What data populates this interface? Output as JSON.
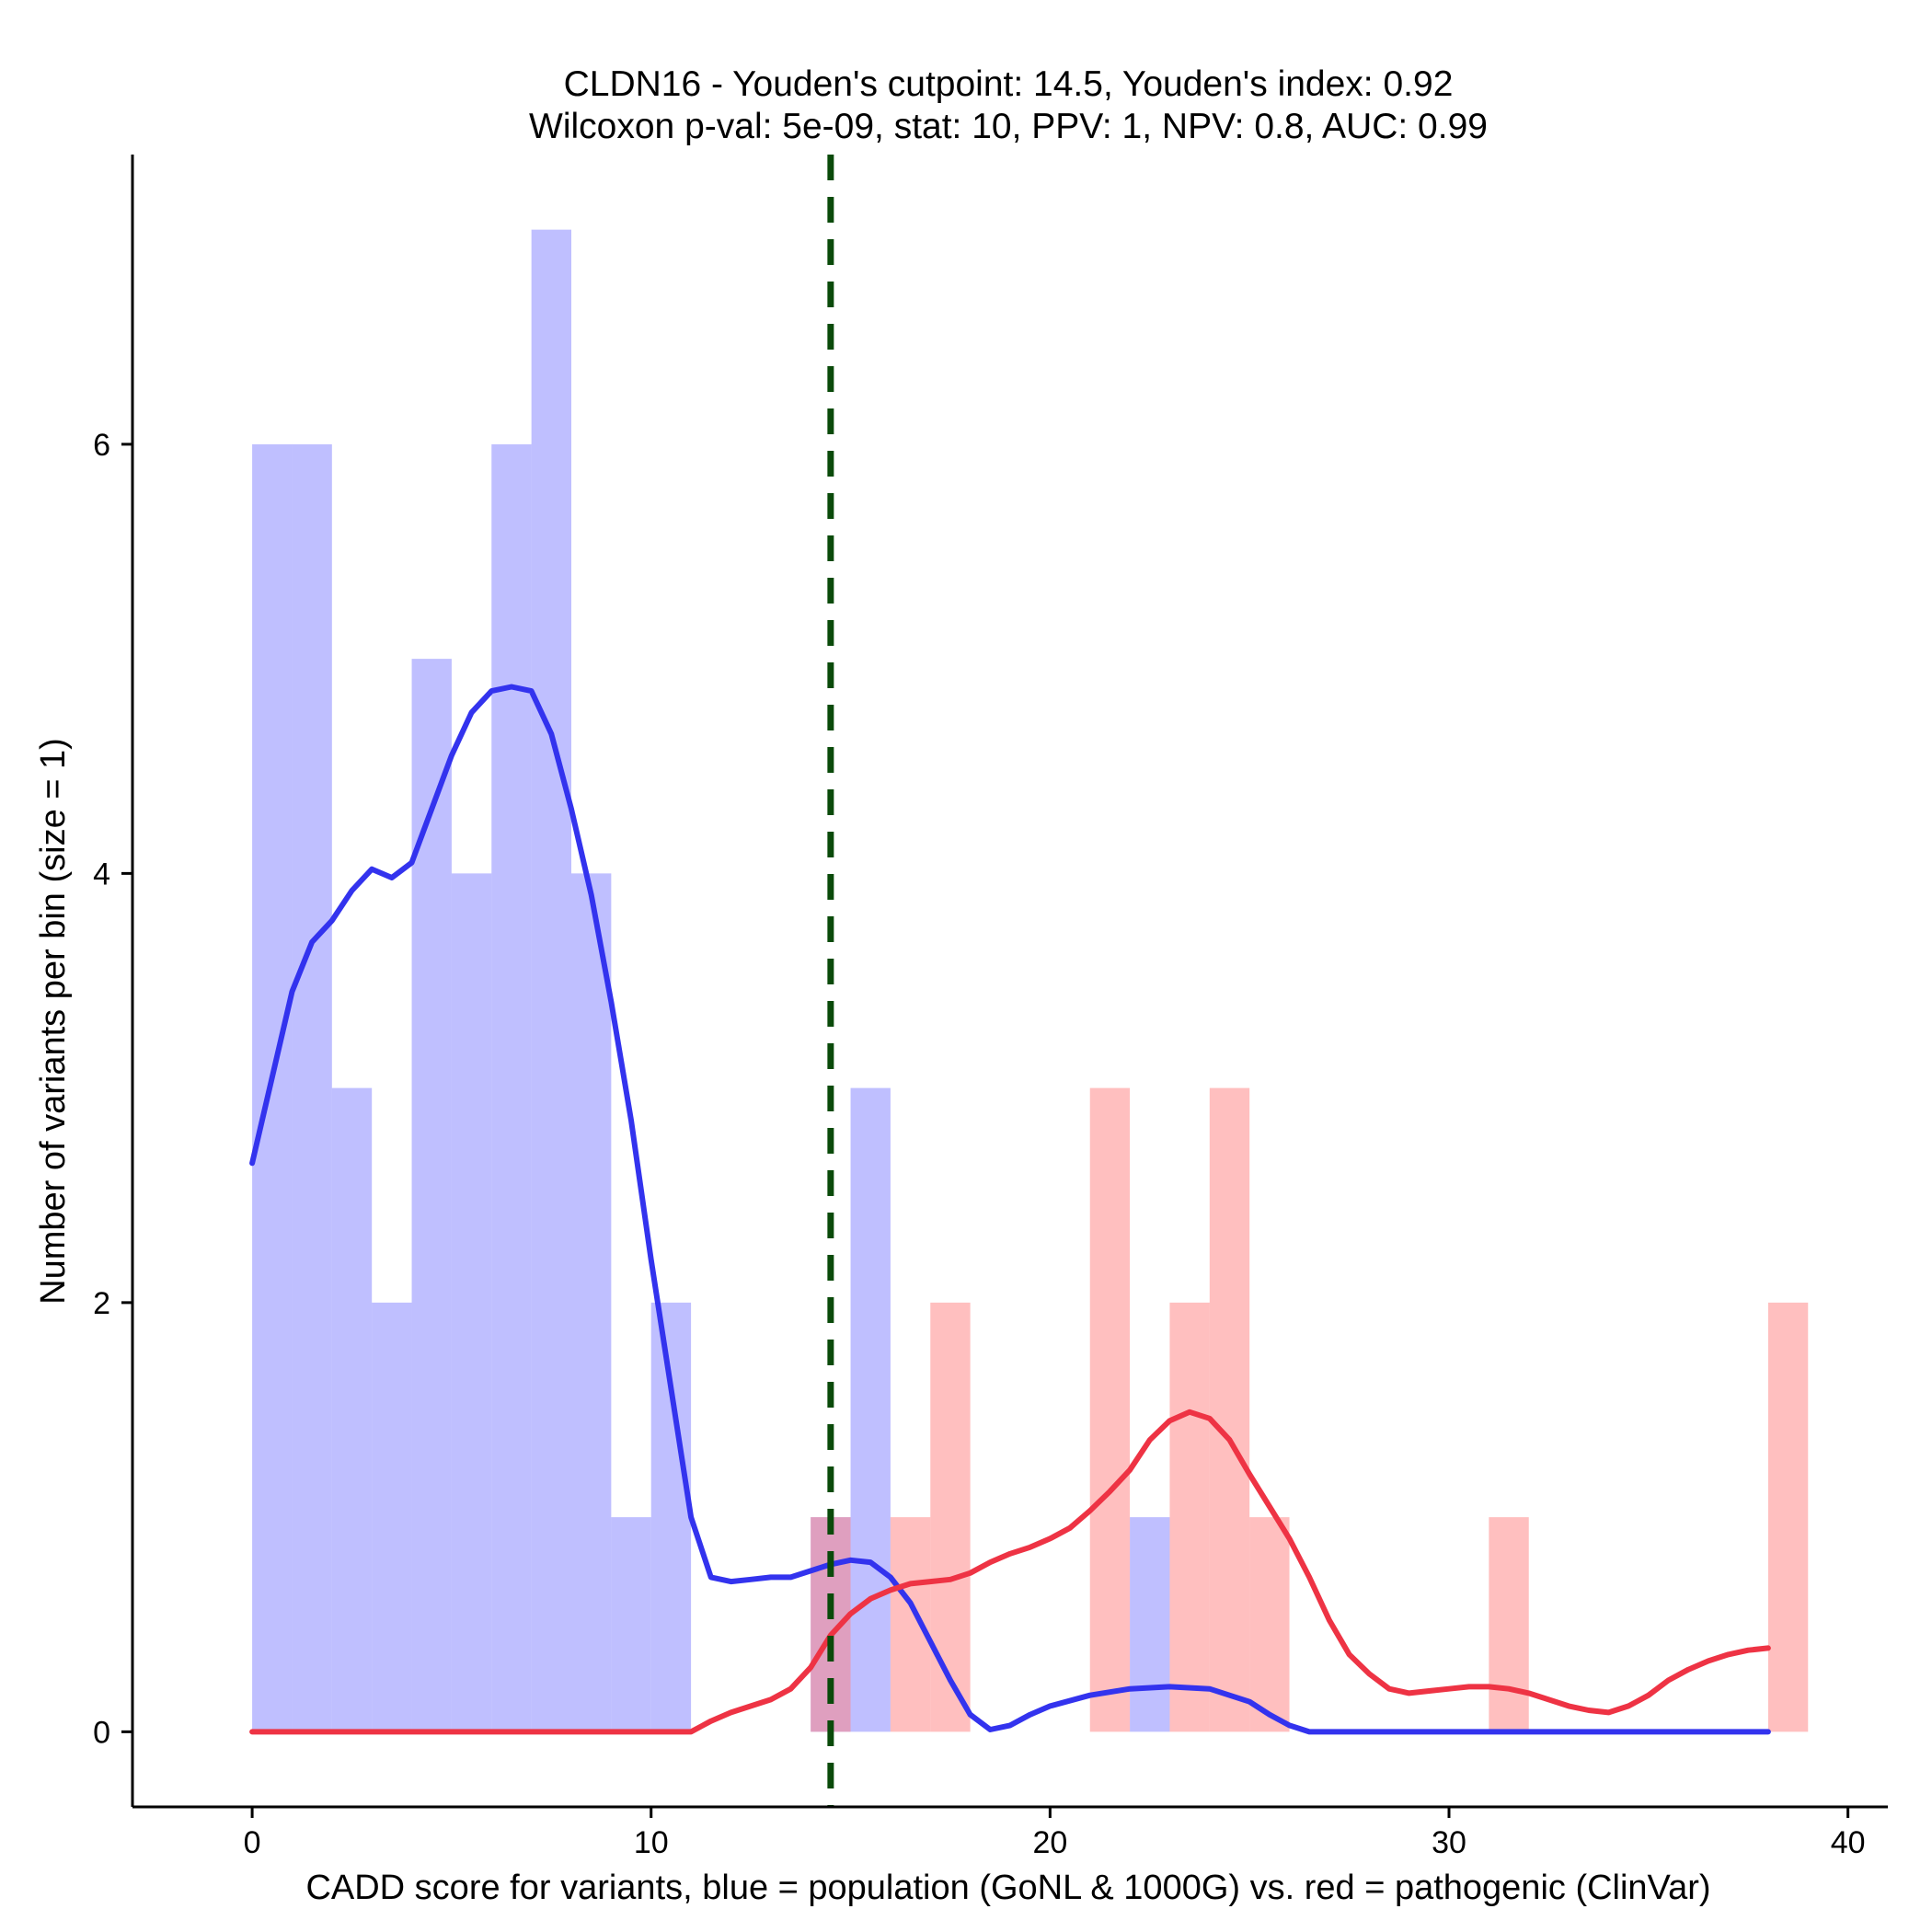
{
  "chart_data": {
    "type": "histogram-with-density",
    "title_lines": [
      "CLDN16 - Youden's cutpoint: 14.5, Youden's index: 0.92",
      "Wilcoxon p-val: 5e-09, stat: 10, PPV: 1, NPV: 0.8, AUC: 0.99"
    ],
    "xlabel": "CADD score for variants, blue = population (GoNL & 1000G) vs. red = pathogenic (ClinVar)",
    "ylabel": "Number of variants per bin (size = 1)",
    "xlim": [
      -3,
      41
    ],
    "ylim": [
      -0.35,
      7.35
    ],
    "x_ticks": [
      0,
      10,
      20,
      30,
      40
    ],
    "y_ticks": [
      0,
      2,
      4,
      6
    ],
    "bin_width": 1,
    "cutpoint": 14.5,
    "colors": {
      "population_bar": "#8080ff",
      "pathogenic_bar": "#ff8080",
      "population_density": "#3333ee",
      "pathogenic_density": "#ee3344",
      "cutpoint": "#0a4a0a"
    },
    "series": [
      {
        "name": "population",
        "kind": "histogram",
        "bins": [
          {
            "start": 0,
            "count": 6
          },
          {
            "start": 1,
            "count": 6
          },
          {
            "start": 2,
            "count": 3
          },
          {
            "start": 3,
            "count": 2
          },
          {
            "start": 4,
            "count": 5
          },
          {
            "start": 5,
            "count": 4
          },
          {
            "start": 6,
            "count": 6
          },
          {
            "start": 7,
            "count": 7
          },
          {
            "start": 8,
            "count": 4
          },
          {
            "start": 9,
            "count": 1
          },
          {
            "start": 10,
            "count": 2
          },
          {
            "start": 14,
            "count": 1
          },
          {
            "start": 15,
            "count": 3
          },
          {
            "start": 22,
            "count": 1
          }
        ]
      },
      {
        "name": "pathogenic",
        "kind": "histogram",
        "bins": [
          {
            "start": 14,
            "count": 1
          },
          {
            "start": 16,
            "count": 1
          },
          {
            "start": 17,
            "count": 2
          },
          {
            "start": 21,
            "count": 3
          },
          {
            "start": 23,
            "count": 2
          },
          {
            "start": 24,
            "count": 3
          },
          {
            "start": 25,
            "count": 1
          },
          {
            "start": 31,
            "count": 1
          },
          {
            "start": 38,
            "count": 2
          }
        ]
      },
      {
        "name": "population density",
        "kind": "line",
        "points": [
          [
            0,
            2.65
          ],
          [
            0.5,
            3.05
          ],
          [
            1,
            3.45
          ],
          [
            1.5,
            3.68
          ],
          [
            2,
            3.78
          ],
          [
            2.5,
            3.92
          ],
          [
            3,
            4.02
          ],
          [
            3.5,
            3.98
          ],
          [
            4,
            4.05
          ],
          [
            4.5,
            4.3
          ],
          [
            5,
            4.55
          ],
          [
            5.5,
            4.75
          ],
          [
            6,
            4.85
          ],
          [
            6.5,
            4.87
          ],
          [
            7,
            4.85
          ],
          [
            7.5,
            4.65
          ],
          [
            8,
            4.3
          ],
          [
            8.5,
            3.9
          ],
          [
            9,
            3.4
          ],
          [
            9.5,
            2.85
          ],
          [
            10,
            2.2
          ],
          [
            10.5,
            1.6
          ],
          [
            11,
            1.0
          ],
          [
            11.5,
            0.72
          ],
          [
            12,
            0.7
          ],
          [
            12.5,
            0.71
          ],
          [
            13,
            0.72
          ],
          [
            13.5,
            0.72
          ],
          [
            14,
            0.75
          ],
          [
            14.5,
            0.78
          ],
          [
            15,
            0.8
          ],
          [
            15.5,
            0.79
          ],
          [
            16,
            0.72
          ],
          [
            16.5,
            0.6
          ],
          [
            17,
            0.42
          ],
          [
            17.5,
            0.24
          ],
          [
            18,
            0.08
          ],
          [
            18.5,
            0.01
          ],
          [
            19,
            0.03
          ],
          [
            19.5,
            0.08
          ],
          [
            20,
            0.12
          ],
          [
            21,
            0.17
          ],
          [
            22,
            0.2
          ],
          [
            23,
            0.21
          ],
          [
            24,
            0.2
          ],
          [
            25,
            0.14
          ],
          [
            25.5,
            0.08
          ],
          [
            26,
            0.03
          ],
          [
            26.5,
            0.0
          ],
          [
            30,
            0.0
          ],
          [
            38,
            0.0
          ]
        ]
      },
      {
        "name": "pathogenic density",
        "kind": "line",
        "points": [
          [
            0,
            0.0
          ],
          [
            11,
            0.0
          ],
          [
            11.5,
            0.05
          ],
          [
            12,
            0.09
          ],
          [
            12.5,
            0.12
          ],
          [
            13,
            0.15
          ],
          [
            13.5,
            0.2
          ],
          [
            14,
            0.3
          ],
          [
            14.5,
            0.45
          ],
          [
            15,
            0.55
          ],
          [
            15.5,
            0.62
          ],
          [
            16,
            0.66
          ],
          [
            16.5,
            0.69
          ],
          [
            17,
            0.7
          ],
          [
            17.5,
            0.71
          ],
          [
            18,
            0.74
          ],
          [
            18.5,
            0.79
          ],
          [
            19,
            0.83
          ],
          [
            19.5,
            0.86
          ],
          [
            20,
            0.9
          ],
          [
            20.5,
            0.95
          ],
          [
            21,
            1.03
          ],
          [
            21.5,
            1.12
          ],
          [
            22,
            1.22
          ],
          [
            22.5,
            1.36
          ],
          [
            23,
            1.45
          ],
          [
            23.5,
            1.49
          ],
          [
            24,
            1.46
          ],
          [
            24.5,
            1.36
          ],
          [
            25,
            1.2
          ],
          [
            25.5,
            1.05
          ],
          [
            26,
            0.9
          ],
          [
            26.5,
            0.72
          ],
          [
            27,
            0.52
          ],
          [
            27.5,
            0.36
          ],
          [
            28,
            0.27
          ],
          [
            28.5,
            0.2
          ],
          [
            29,
            0.18
          ],
          [
            29.5,
            0.19
          ],
          [
            30,
            0.2
          ],
          [
            30.5,
            0.21
          ],
          [
            31,
            0.21
          ],
          [
            31.5,
            0.2
          ],
          [
            32,
            0.18
          ],
          [
            32.5,
            0.15
          ],
          [
            33,
            0.12
          ],
          [
            33.5,
            0.1
          ],
          [
            34,
            0.09
          ],
          [
            34.5,
            0.12
          ],
          [
            35,
            0.17
          ],
          [
            35.5,
            0.24
          ],
          [
            36,
            0.29
          ],
          [
            36.5,
            0.33
          ],
          [
            37,
            0.36
          ],
          [
            37.5,
            0.38
          ],
          [
            38,
            0.39
          ]
        ]
      }
    ]
  }
}
